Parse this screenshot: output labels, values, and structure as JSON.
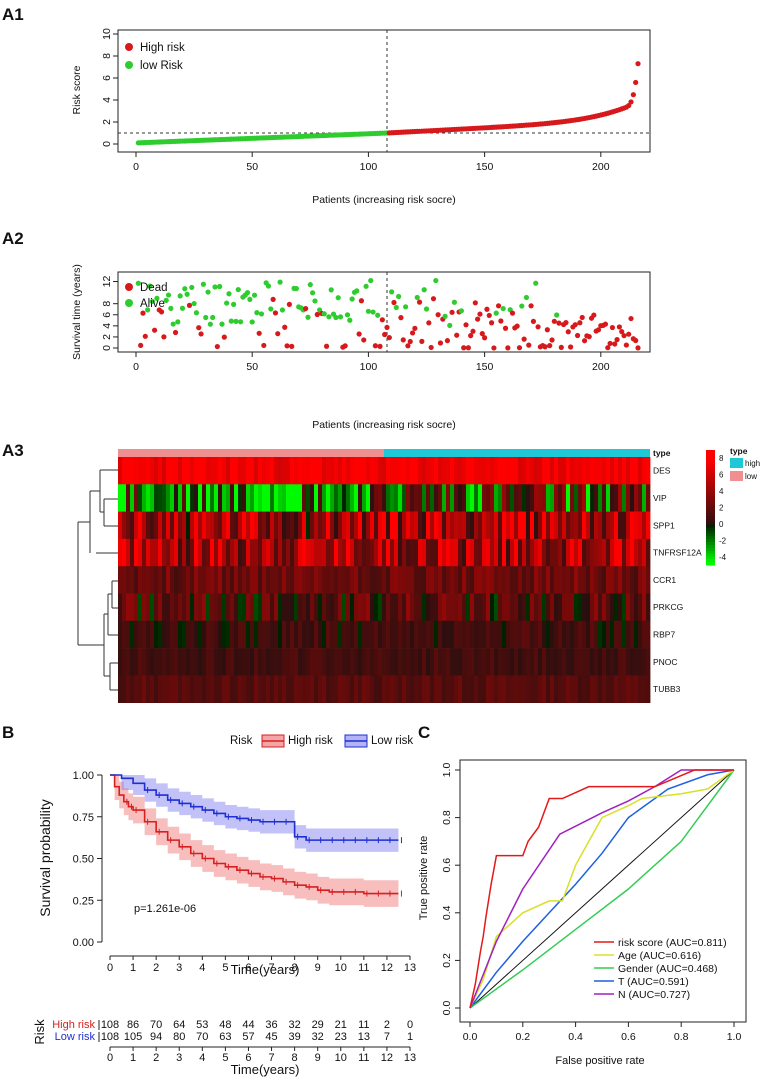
{
  "colors": {
    "high_risk": "#d7191c",
    "low_risk": "#2ecc2e",
    "dead": "#d7191c",
    "alive": "#2ecc2e",
    "km_high": "#d62020",
    "km_low": "#1f2fd0",
    "type_high": "#1fc8d6",
    "type_low": "#f08f8f",
    "roc_risk": "#e31a1c",
    "roc_age": "#d8e02a",
    "roc_gender": "#33cc55",
    "roc_t": "#1f5fe0",
    "roc_n": "#a020c0"
  },
  "chart_data": [
    {
      "id": "A1",
      "panel_label": "A1",
      "type": "scatter",
      "title": "",
      "xlabel": "Patients (increasing risk socre)",
      "ylabel": "Risk score",
      "xlim": [
        0,
        216
      ],
      "ylim": [
        0,
        10
      ],
      "x_ticks": [
        0,
        50,
        100,
        150,
        200
      ],
      "y_ticks": [
        0,
        2,
        4,
        6,
        8,
        10
      ],
      "cutoff_index": 108,
      "cutoff_value": 1.0,
      "n_patients": 216,
      "series": [
        {
          "name": "High risk",
          "x_range": [
            109,
            216
          ],
          "y_range": [
            1.0,
            10.0
          ]
        },
        {
          "name": "low Risk",
          "x_range": [
            1,
            108
          ],
          "y_range": [
            0.1,
            1.0
          ]
        }
      ],
      "legend": [
        "High risk",
        "low Risk"
      ]
    },
    {
      "id": "A2",
      "panel_label": "A2",
      "type": "scatter",
      "xlabel": "Patients (increasing risk socre)",
      "ylabel": "Survival time (years)",
      "xlim": [
        0,
        216
      ],
      "ylim": [
        0,
        13
      ],
      "x_ticks": [
        0,
        50,
        100,
        150,
        200
      ],
      "y_ticks": [
        0,
        2,
        4,
        6,
        8,
        12
      ],
      "cutoff_index": 108,
      "legend": [
        "Dead",
        "Alive"
      ]
    },
    {
      "id": "A3",
      "panel_label": "A3",
      "type": "heatmap",
      "genes": [
        "DES",
        "VIP",
        "SPP1",
        "TNFRSF12A",
        "CCR1",
        "PRKCG",
        "RBP7",
        "PNOC",
        "TUBB3"
      ],
      "annotation_label": "type",
      "type_legend_title": "type",
      "type_levels": [
        "high",
        "low"
      ],
      "color_scale_ticks": [
        8,
        6,
        4,
        2,
        0,
        -2,
        -4
      ],
      "color_scale_range": [
        -5,
        9
      ]
    },
    {
      "id": "B",
      "panel_label": "B",
      "type": "line",
      "xlabel": "Time(years)",
      "ylabel": "Survival probability",
      "xlim": [
        0,
        13
      ],
      "ylim": [
        0,
        1
      ],
      "x_ticks": [
        0,
        1,
        2,
        3,
        4,
        5,
        6,
        7,
        8,
        9,
        10,
        11,
        12,
        13
      ],
      "y_ticks": [
        "0.00",
        "0.25",
        "0.50",
        "0.75",
        "1.00"
      ],
      "pvalue": "p=1.261e-06",
      "legend_title": "Risk",
      "series": [
        {
          "name": "High risk",
          "times": [
            0,
            0.2,
            0.4,
            0.6,
            0.8,
            1,
            1.5,
            2,
            2.5,
            3,
            3.5,
            4,
            4.5,
            5,
            5.5,
            6,
            6.5,
            7,
            7.5,
            8,
            8.5,
            9,
            9.5,
            10,
            10.5,
            11,
            11.5,
            12,
            12.5
          ],
          "surv": [
            1,
            0.93,
            0.88,
            0.84,
            0.81,
            0.79,
            0.72,
            0.66,
            0.61,
            0.57,
            0.53,
            0.5,
            0.47,
            0.45,
            0.43,
            0.41,
            0.39,
            0.38,
            0.36,
            0.34,
            0.33,
            0.31,
            0.3,
            0.3,
            0.3,
            0.29,
            0.29,
            0.29,
            0.29
          ],
          "ci_lower_offset": 0.08,
          "ci_upper_offset": 0.08
        },
        {
          "name": "Low risk",
          "times": [
            0,
            0.5,
            1,
            1.5,
            2,
            2.5,
            3,
            3.5,
            4,
            4.5,
            5,
            5.5,
            6,
            6.5,
            7,
            7.5,
            8,
            8.5,
            9,
            9.5,
            10,
            10.5,
            11,
            11.5,
            12,
            12.5
          ],
          "surv": [
            1,
            0.98,
            0.95,
            0.91,
            0.88,
            0.85,
            0.83,
            0.81,
            0.79,
            0.77,
            0.75,
            0.74,
            0.73,
            0.72,
            0.72,
            0.72,
            0.63,
            0.61,
            0.61,
            0.61,
            0.61,
            0.61,
            0.61,
            0.61,
            0.61,
            0.61
          ],
          "ci_lower_offset": 0.07,
          "ci_upper_offset": 0.07
        }
      ],
      "risk_table": {
        "title": "Risk",
        "times": [
          0,
          1,
          2,
          3,
          4,
          5,
          6,
          7,
          8,
          9,
          10,
          11,
          12,
          13
        ],
        "rows": [
          {
            "name": "High risk",
            "values": [
              108,
              86,
              70,
              64,
              53,
              48,
              44,
              36,
              32,
              29,
              21,
              11,
              2,
              0
            ]
          },
          {
            "name": "Low risk",
            "values": [
              108,
              105,
              94,
              80,
              70,
              63,
              57,
              45,
              39,
              32,
              23,
              13,
              7,
              1
            ]
          }
        ],
        "xlabel": "Time(years)"
      }
    },
    {
      "id": "C",
      "panel_label": "C",
      "type": "line",
      "xlabel": "False positive rate",
      "ylabel": "True positive rate",
      "xlim": [
        0,
        1
      ],
      "ylim": [
        0,
        1
      ],
      "x_ticks": [
        "0.0",
        "0.2",
        "0.4",
        "0.6",
        "0.8",
        "1.0"
      ],
      "y_ticks": [
        "0.0",
        "0.2",
        "0.4",
        "0.6",
        "0.8",
        "1.0"
      ],
      "series": [
        {
          "name": "risk score (AUC=0.811)",
          "x": [
            0,
            0.02,
            0.03,
            0.04,
            0.05,
            0.06,
            0.07,
            0.08,
            0.1,
            0.12,
            0.2,
            0.22,
            0.26,
            0.3,
            0.35,
            0.45,
            0.5,
            0.6,
            0.7,
            0.85,
            1
          ],
          "y": [
            0,
            0.1,
            0.17,
            0.24,
            0.3,
            0.38,
            0.45,
            0.52,
            0.64,
            0.64,
            0.64,
            0.7,
            0.76,
            0.88,
            0.88,
            0.93,
            0.93,
            0.93,
            0.93,
            1,
            1
          ]
        },
        {
          "name": "Age (AUC=0.616)",
          "x": [
            0,
            0.05,
            0.1,
            0.2,
            0.3,
            0.35,
            0.4,
            0.45,
            0.5,
            0.6,
            0.65,
            0.8,
            0.9,
            1
          ],
          "y": [
            0,
            0.12,
            0.3,
            0.4,
            0.45,
            0.45,
            0.6,
            0.7,
            0.8,
            0.85,
            0.88,
            0.9,
            0.92,
            1
          ]
        },
        {
          "name": "Gender (AUC=0.468)",
          "x": [
            0,
            0.2,
            0.4,
            0.6,
            0.8,
            0.9,
            1
          ],
          "y": [
            0,
            0.16,
            0.33,
            0.5,
            0.7,
            0.85,
            1
          ]
        },
        {
          "name": "T (AUC=0.591)",
          "x": [
            0,
            0.1,
            0.2,
            0.3,
            0.4,
            0.5,
            0.6,
            0.75,
            0.9,
            1
          ],
          "y": [
            0,
            0.15,
            0.28,
            0.4,
            0.52,
            0.65,
            0.8,
            0.92,
            0.98,
            1
          ]
        },
        {
          "name": "N (AUC=0.727)",
          "x": [
            0,
            0.1,
            0.2,
            0.34,
            0.5,
            0.6,
            0.7,
            0.8,
            1
          ],
          "y": [
            0,
            0.28,
            0.5,
            0.73,
            0.82,
            0.87,
            0.93,
            1,
            1
          ]
        }
      ]
    }
  ]
}
